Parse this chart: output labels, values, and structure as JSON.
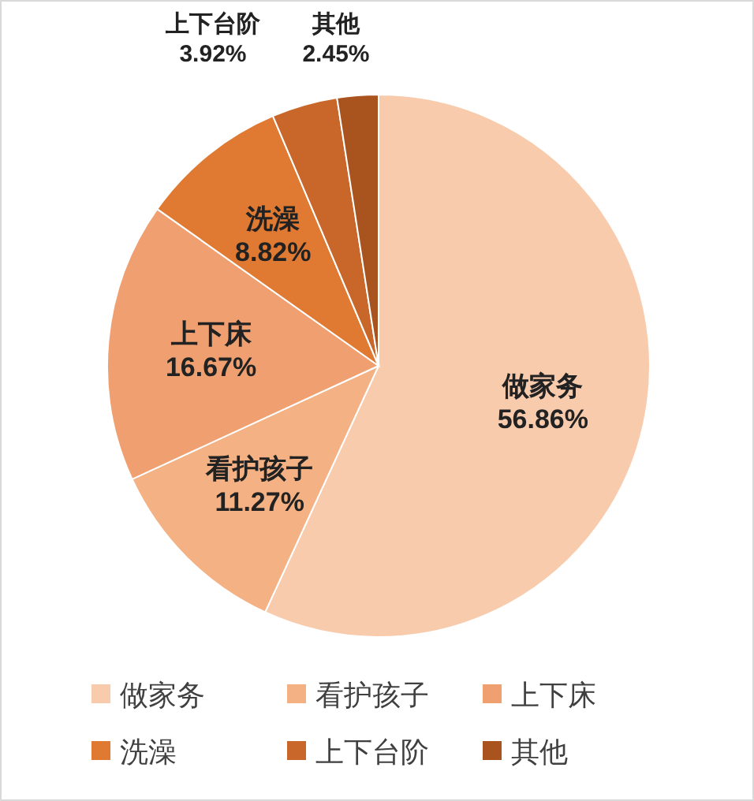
{
  "chart_data": {
    "type": "pie",
    "categories": [
      "做家务",
      "看护孩子",
      "上下床",
      "洗澡",
      "上下台阶",
      "其他"
    ],
    "values": [
      56.86,
      11.27,
      16.67,
      8.82,
      3.92,
      2.45
    ],
    "colors": [
      "#f8cbad",
      "#f4b183",
      "#f0a070",
      "#e07a32",
      "#c9672a",
      "#a9531f"
    ],
    "value_labels": [
      "56.86%",
      "11.27%",
      "16.67%",
      "8.82%",
      "3.92%",
      "2.45%"
    ],
    "legend": "bottom"
  }
}
